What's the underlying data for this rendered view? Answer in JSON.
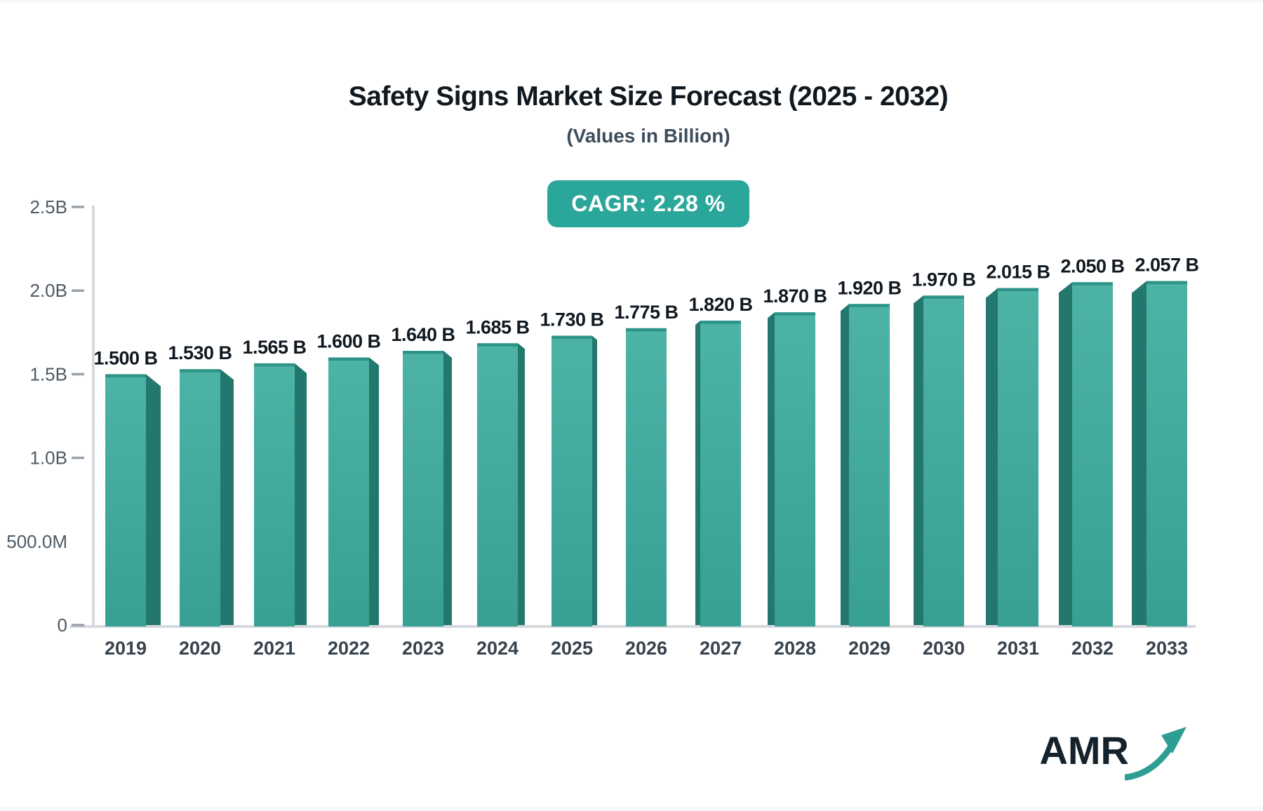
{
  "header": {
    "title": "Safety Signs Market Size Forecast (2025 - 2032)",
    "subtitle": "(Values in Billion)",
    "cagr_badge": "CAGR: 2.28 %"
  },
  "footer": {
    "logo_text": "AMR"
  },
  "chart_data": {
    "type": "bar",
    "title": "Safety Signs Market Size Forecast (2025 - 2032)",
    "subtitle": "(Values in Billion)",
    "annotation": "CAGR: 2.28 %",
    "categories": [
      "2019",
      "2020",
      "2021",
      "2022",
      "2023",
      "2024",
      "2025",
      "2026",
      "2027",
      "2028",
      "2029",
      "2030",
      "2031",
      "2032",
      "2033"
    ],
    "values": [
      1.5,
      1.53,
      1.565,
      1.6,
      1.64,
      1.685,
      1.73,
      1.775,
      1.82,
      1.87,
      1.92,
      1.97,
      2.015,
      2.05,
      2.057
    ],
    "value_labels": [
      "1.500 B",
      "1.530 B",
      "1.565 B",
      "1.600 B",
      "1.640 B",
      "1.685 B",
      "1.730 B",
      "1.775 B",
      "1.820 B",
      "1.870 B",
      "1.920 B",
      "1.970 B",
      "2.015 B",
      "2.050 B",
      "2.057 B"
    ],
    "xlabel": "",
    "ylabel": "",
    "ylim": [
      0,
      2.5
    ],
    "grid": "off",
    "legend": "none",
    "bar_style": "3d-perspective",
    "yticks": [
      {
        "value": 0.0,
        "label": "0",
        "dash": true
      },
      {
        "value": 0.5,
        "label": "500.0M",
        "dash": false
      },
      {
        "value": 1.0,
        "label": "1.0B",
        "dash": true
      },
      {
        "value": 1.5,
        "label": "1.5B",
        "dash": true
      },
      {
        "value": 2.0,
        "label": "2.0B",
        "dash": true
      },
      {
        "value": 2.5,
        "label": "2.5B",
        "dash": true
      }
    ],
    "colors": {
      "bar_face_top": "#4cb3a5",
      "bar_face_bottom": "#38a093",
      "bar_side": "#23786e",
      "bar_top_edge": "#2e9488",
      "badge_bg": "#2ba69a",
      "badge_text": "#ffffff",
      "axis_line": "#d5d9dd",
      "tick": "#9aa1a9",
      "value_label": "#101820",
      "axis_label": "#36424e",
      "ytick_label": "#4e5a66",
      "logo_text": "#15222b",
      "logo_arrow": "#2f9e92"
    }
  }
}
